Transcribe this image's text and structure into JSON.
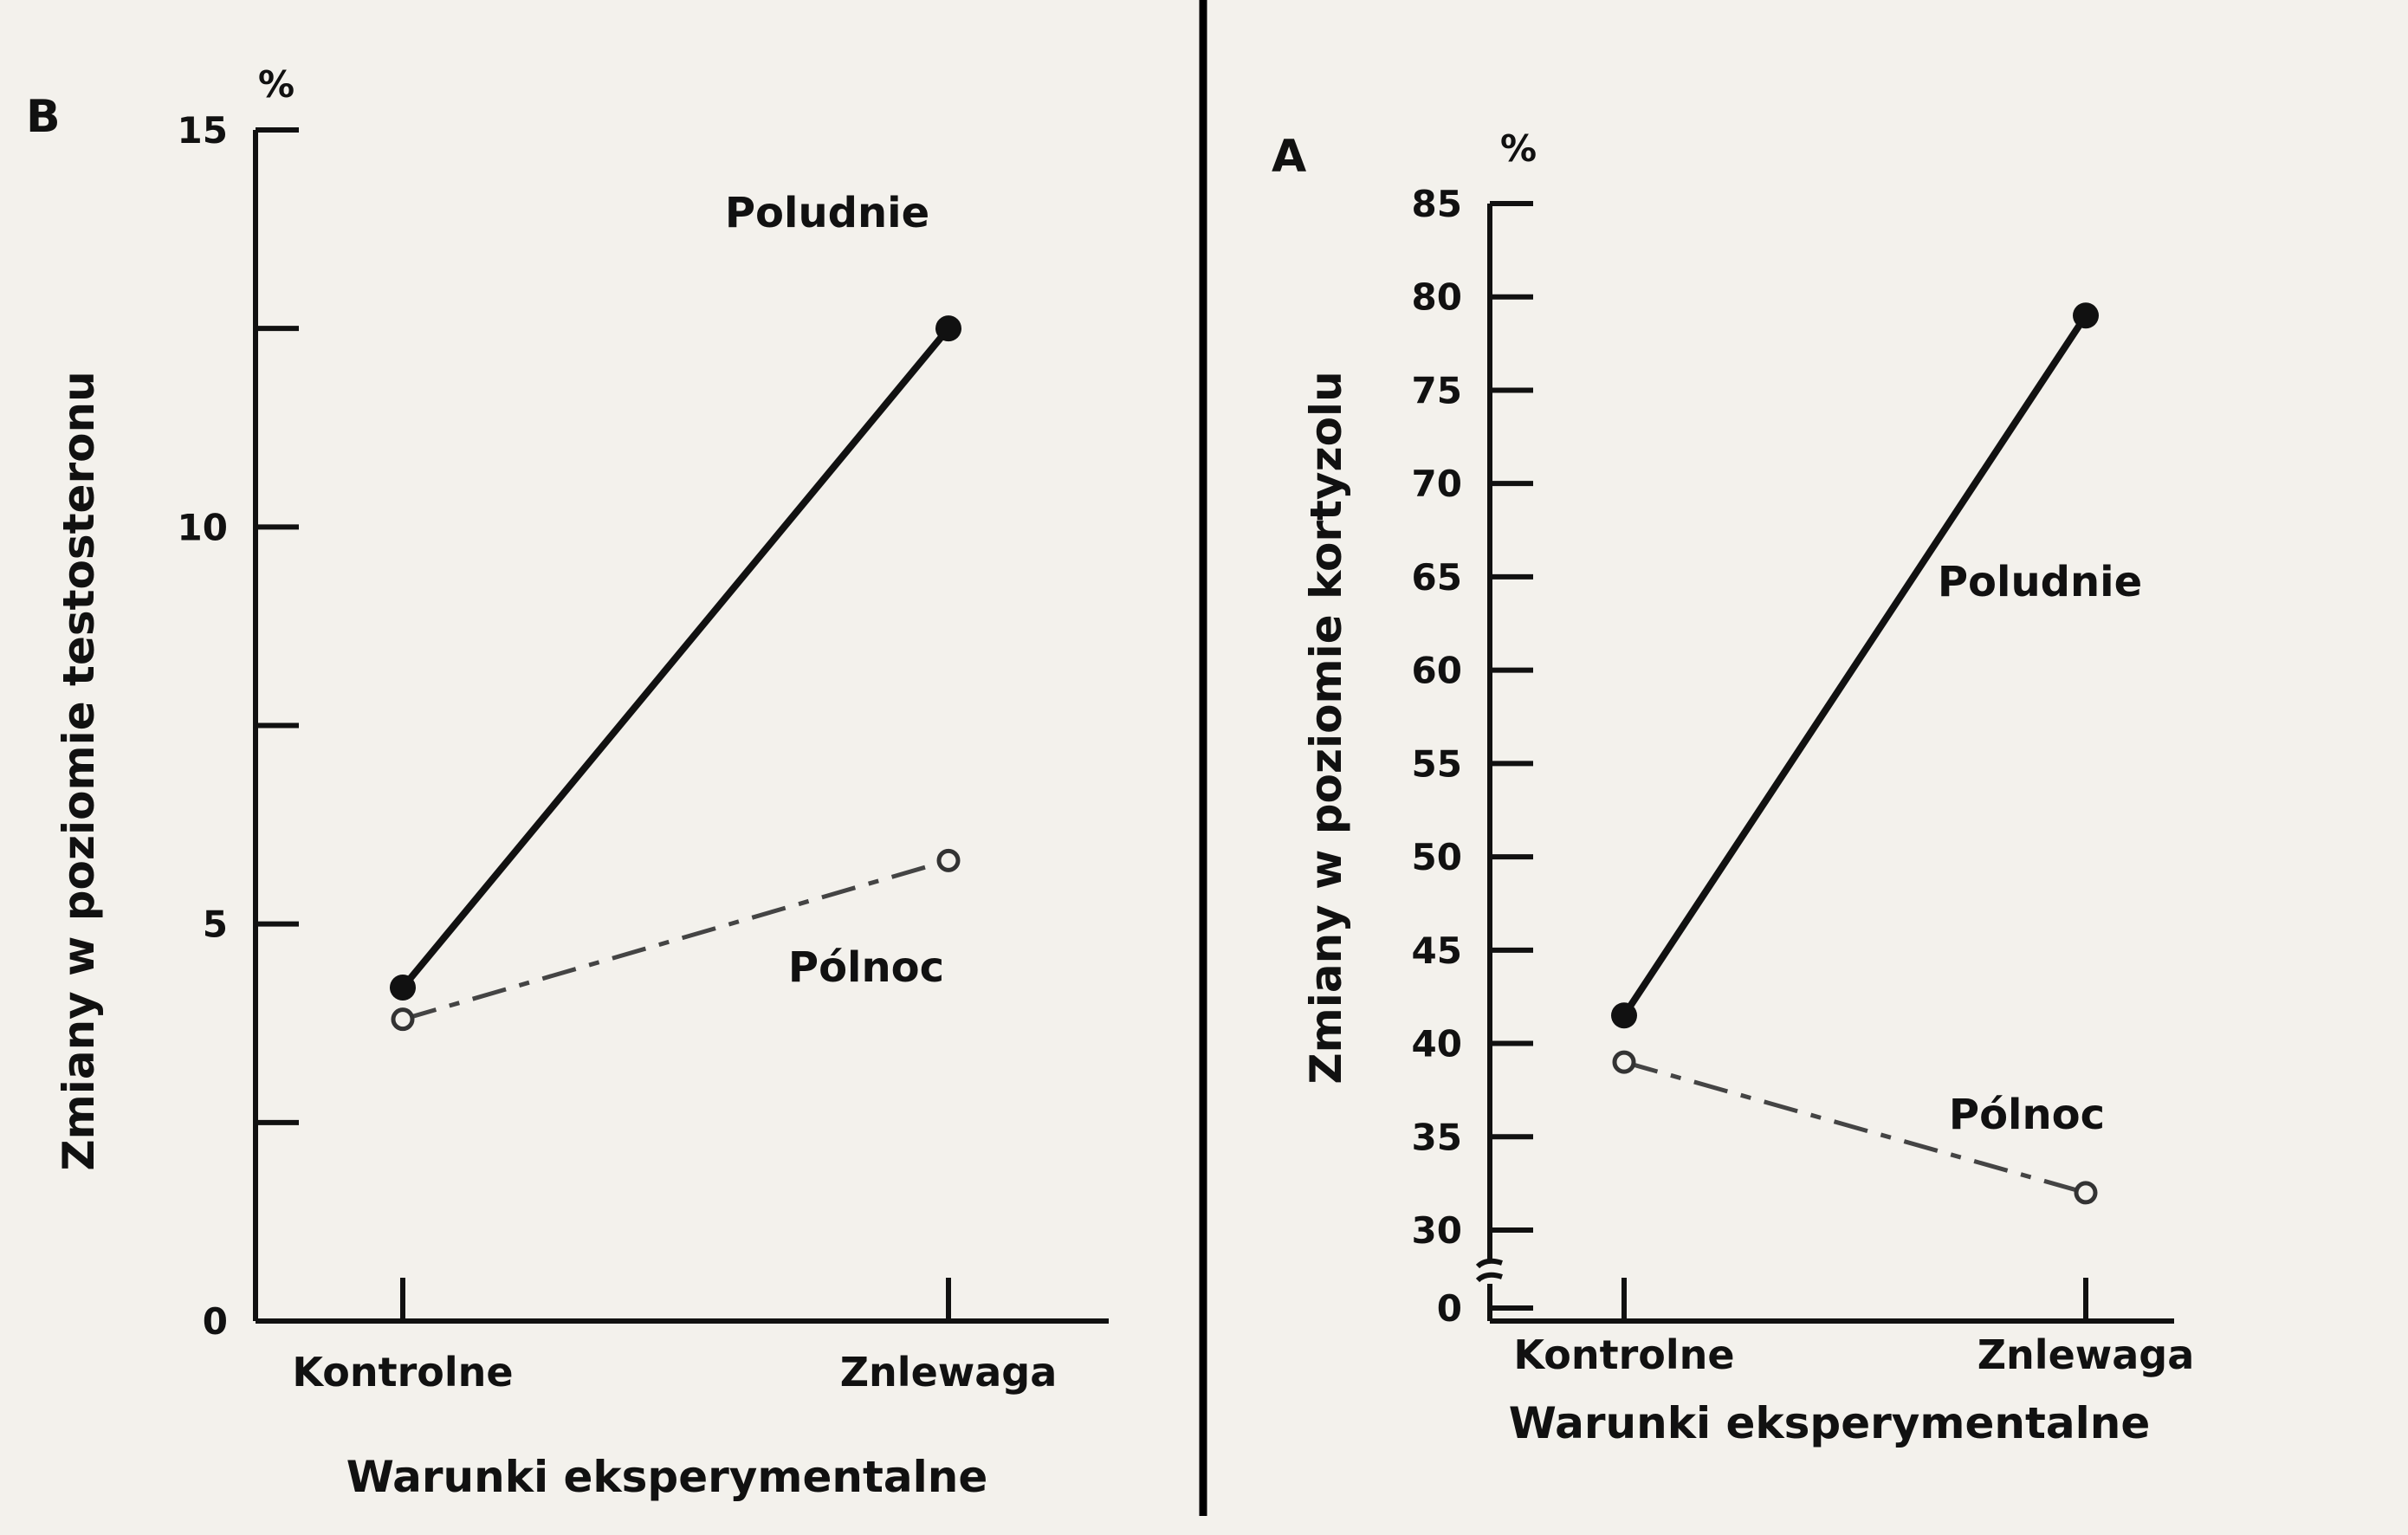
{
  "chart_data": [
    {
      "type": "line",
      "panel_label": "B",
      "unit_label": "%",
      "ylabel": "Zmiany w poziomie testosteronu",
      "xlabel": "Warunki eksperymentalne",
      "categories": [
        "Kontrolne",
        "Znlewaga"
      ],
      "ylim": [
        0,
        15
      ],
      "yticks": [
        0,
        2.5,
        5,
        7.5,
        10,
        12.5,
        15
      ],
      "ytick_labels": [
        "0",
        "",
        "5",
        "",
        "10",
        "",
        "15"
      ],
      "series": [
        {
          "name": "Poludnie",
          "values": [
            4.2,
            12.5
          ],
          "style": "solid",
          "marker": "filled"
        },
        {
          "name": "Pólnoc",
          "values": [
            3.8,
            5.8
          ],
          "style": "dashed",
          "marker": "open"
        }
      ]
    },
    {
      "type": "line",
      "panel_label": "A",
      "unit_label": "%",
      "ylabel": "Zmiany w poziomie kortyzolu",
      "xlabel": "Warunki eksperymentalne",
      "categories": [
        "Kontrolne",
        "Znlewaga"
      ],
      "ylim": [
        30,
        85
      ],
      "axis_break": true,
      "yticks": [
        0,
        30,
        35,
        40,
        45,
        50,
        55,
        60,
        65,
        70,
        75,
        80,
        85
      ],
      "ytick_labels": [
        "0",
        "30",
        "35",
        "40",
        "45",
        "50",
        "55",
        "60",
        "65",
        "70",
        "75",
        "80",
        "85"
      ],
      "series": [
        {
          "name": "Poludnie",
          "values": [
            41.5,
            79
          ],
          "style": "solid",
          "marker": "filled"
        },
        {
          "name": "Pólnoc",
          "values": [
            39,
            32
          ],
          "style": "dashed",
          "marker": "open"
        }
      ]
    }
  ],
  "colors": {
    "ink": "#111111",
    "paper": "#f3f1ec",
    "divider": "#000000"
  }
}
